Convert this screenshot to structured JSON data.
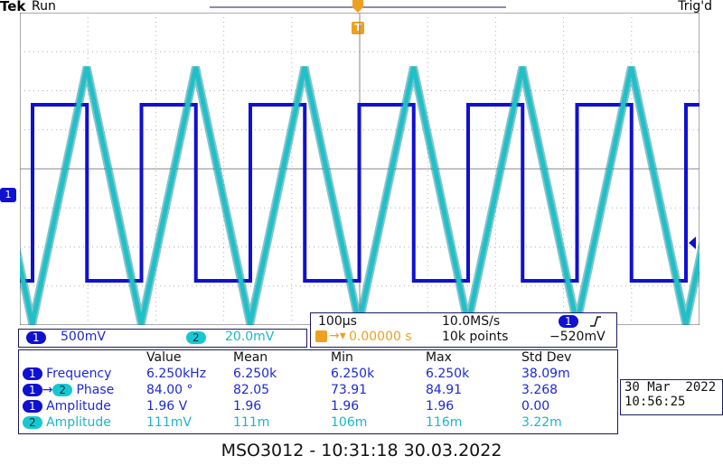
{
  "header": {
    "brand": "Tek",
    "status": "Run",
    "trigger_state": "Trig'd",
    "trigger_marker": "T"
  },
  "channels": {
    "ch1": {
      "label": "1",
      "scale": "500mV",
      "color": "#1010d0"
    },
    "ch2": {
      "label": "2",
      "scale": "20.0mV",
      "color": "#18c8d0"
    }
  },
  "acquisition": {
    "timebase": "100µs",
    "sample_rate": "10.0MS/s",
    "trigger_offset": "0.00000 s",
    "record_length": "10k points",
    "trigger_channel": "1",
    "trigger_slope_icon": "rising-edge-icon",
    "trigger_level": "−520mV"
  },
  "measurements": {
    "columns": [
      "Value",
      "Mean",
      "Min",
      "Max",
      "Std Dev"
    ],
    "rows": [
      {
        "source": "1",
        "source2": "",
        "name": "Frequency",
        "value": "6.250kHz",
        "mean": "6.250k",
        "min": "6.250k",
        "max": "6.250k",
        "std": "38.09m"
      },
      {
        "source": "1",
        "source2": "2",
        "name": "Phase",
        "value": "84.00 °",
        "mean": "82.05",
        "min": "73.91",
        "max": "84.91",
        "std": "3.268"
      },
      {
        "source": "1",
        "source2": "",
        "name": "Amplitude",
        "value": "1.96 V",
        "mean": "1.96",
        "min": "1.96",
        "max": "1.96",
        "std": "0.00"
      },
      {
        "source": "2",
        "source2": "",
        "name": "Amplitude",
        "value": "111mV",
        "mean": "111m",
        "min": "106m",
        "max": "116m",
        "std": "3.22m"
      }
    ]
  },
  "datetime": {
    "date": "30 Mar  2022",
    "time": "10:56:25"
  },
  "footer": {
    "caption": "MSO3012 - 10:31:18   30.03.2022"
  },
  "colors": {
    "ch1_trace": "#1010d0",
    "ch2_trace": "#20c0c8",
    "grid": "#b0b0b0"
  }
}
